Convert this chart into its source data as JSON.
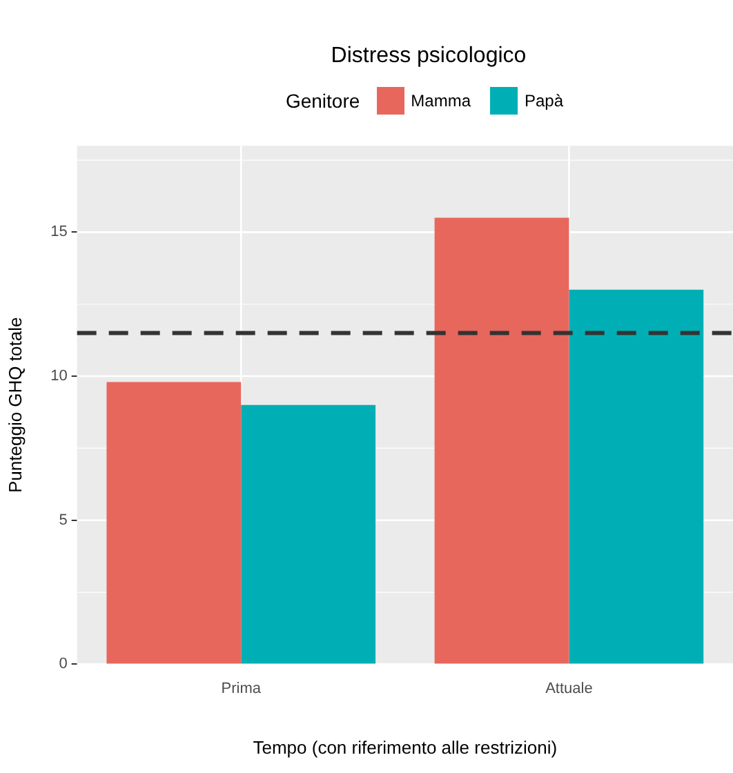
{
  "chart_data": {
    "type": "bar",
    "title": "Distress psicologico",
    "legend_title": "Genitore",
    "xlabel": "Tempo (con riferimento alle restrizioni)",
    "ylabel": "Punteggio GHQ totale",
    "categories": [
      "Prima",
      "Attuale"
    ],
    "series": [
      {
        "name": "Mamma",
        "color": "#e8675d",
        "values": [
          9.8,
          15.5
        ]
      },
      {
        "name": "Papà",
        "color": "#00afb6",
        "values": [
          9.0,
          13.0
        ]
      }
    ],
    "ylim": [
      0,
      18
    ],
    "yticks": [
      0,
      {
        "value": 2.5,
        "label": null
      },
      5,
      {
        "value": 7.5,
        "label": null
      },
      10,
      {
        "value": 12.5,
        "label": null
      },
      15,
      {
        "value": 17.5,
        "label": null
      }
    ],
    "ref_lines": [
      {
        "axis": "y",
        "value": 11.5,
        "color": "#333333",
        "line_style": "dashed"
      }
    ],
    "grid": true,
    "legend": "top"
  }
}
